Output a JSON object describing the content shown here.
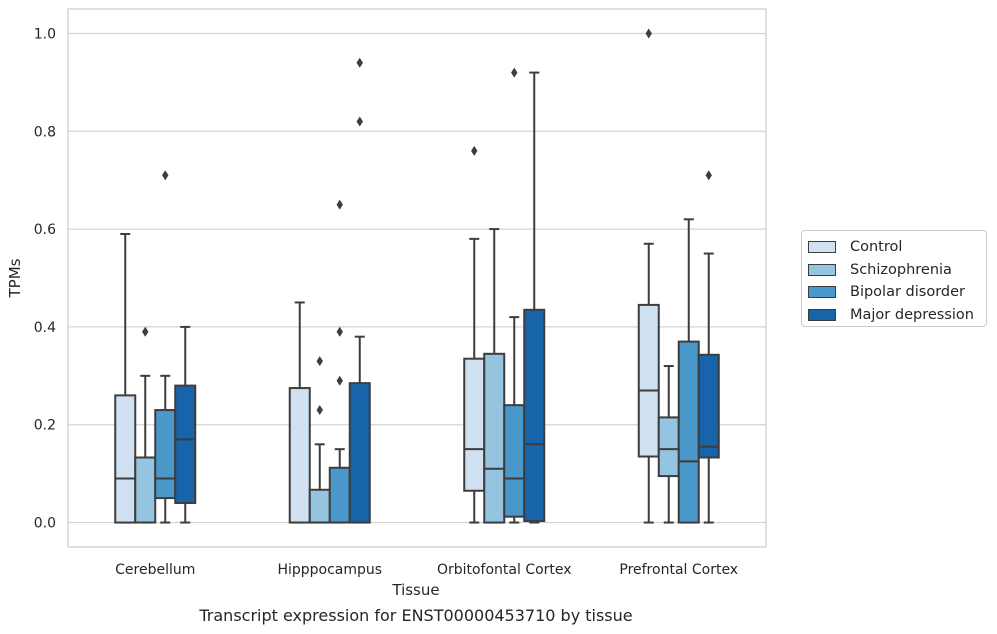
{
  "caption": "Transcript expression for ENST00000453710 by tissue",
  "chart_data": {
    "type": "box",
    "title": "",
    "xlabel": "Tissue",
    "ylabel": "TPMs",
    "ylim": [
      -0.05,
      1.05
    ],
    "yticks": [
      "0.0",
      "0.2",
      "0.4",
      "0.6",
      "0.8",
      "1.0"
    ],
    "grid": "horizontal",
    "legend_position": "outside-right",
    "categories": [
      "Cerebellum",
      "Hipppocampus",
      "Orbitofontal Cortex",
      "Prefrontal Cortex"
    ],
    "series": [
      {
        "name": "Control",
        "color": "#d0e1f2",
        "boxes": [
          {
            "whisker_low": 0.0,
            "q1": 0.0,
            "median": 0.09,
            "q3": 0.26,
            "whisker_high": 0.59,
            "outliers": []
          },
          {
            "whisker_low": 0.0,
            "q1": 0.0,
            "median": 0.0,
            "q3": 0.275,
            "whisker_high": 0.45,
            "outliers": []
          },
          {
            "whisker_low": 0.0,
            "q1": 0.065,
            "median": 0.15,
            "q3": 0.335,
            "whisker_high": 0.58,
            "outliers": [
              0.76
            ]
          },
          {
            "whisker_low": 0.0,
            "q1": 0.135,
            "median": 0.27,
            "q3": 0.445,
            "whisker_high": 0.57,
            "outliers": [
              1.0
            ]
          }
        ]
      },
      {
        "name": "Schizophrenia",
        "color": "#94c4df",
        "boxes": [
          {
            "whisker_low": 0.0,
            "q1": 0.0,
            "median": 0.0,
            "q3": 0.133,
            "whisker_high": 0.3,
            "outliers": [
              0.39
            ]
          },
          {
            "whisker_low": 0.0,
            "q1": 0.0,
            "median": 0.0,
            "q3": 0.067,
            "whisker_high": 0.16,
            "outliers": [
              0.23,
              0.33
            ]
          },
          {
            "whisker_low": 0.0,
            "q1": 0.0,
            "median": 0.11,
            "q3": 0.345,
            "whisker_high": 0.6,
            "outliers": []
          },
          {
            "whisker_low": 0.0,
            "q1": 0.095,
            "median": 0.15,
            "q3": 0.215,
            "whisker_high": 0.32,
            "outliers": []
          }
        ]
      },
      {
        "name": "Bipolar disorder",
        "color": "#4a98c9",
        "boxes": [
          {
            "whisker_low": 0.0,
            "q1": 0.05,
            "median": 0.09,
            "q3": 0.23,
            "whisker_high": 0.3,
            "outliers": [
              0.71
            ]
          },
          {
            "whisker_low": 0.0,
            "q1": 0.0,
            "median": 0.0,
            "q3": 0.112,
            "whisker_high": 0.15,
            "outliers": [
              0.29,
              0.39,
              0.65
            ]
          },
          {
            "whisker_low": 0.0,
            "q1": 0.012,
            "median": 0.09,
            "q3": 0.24,
            "whisker_high": 0.42,
            "outliers": [
              0.92
            ]
          },
          {
            "whisker_low": 0.0,
            "q1": 0.0,
            "median": 0.125,
            "q3": 0.37,
            "whisker_high": 0.62,
            "outliers": []
          }
        ]
      },
      {
        "name": "Major depression",
        "color": "#1764ab",
        "boxes": [
          {
            "whisker_low": 0.0,
            "q1": 0.04,
            "median": 0.17,
            "q3": 0.28,
            "whisker_high": 0.4,
            "outliers": []
          },
          {
            "whisker_low": 0.0,
            "q1": 0.0,
            "median": 0.0,
            "q3": 0.285,
            "whisker_high": 0.38,
            "outliers": [
              0.82,
              0.94
            ]
          },
          {
            "whisker_low": 0.0,
            "q1": 0.003,
            "median": 0.16,
            "q3": 0.435,
            "whisker_high": 0.92,
            "outliers": []
          },
          {
            "whisker_low": 0.0,
            "q1": 0.133,
            "median": 0.155,
            "q3": 0.343,
            "whisker_high": 0.55,
            "outliers": [
              0.71
            ]
          }
        ]
      }
    ]
  }
}
